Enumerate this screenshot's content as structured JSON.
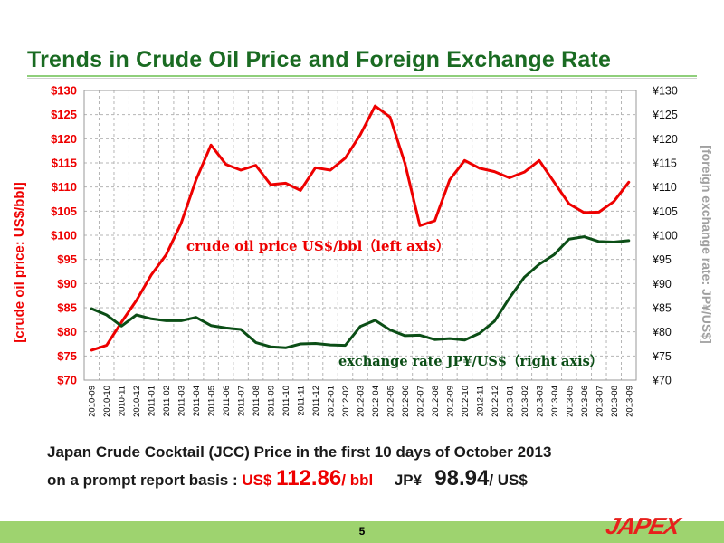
{
  "title": "Trends in Crude Oil Price and Foreign Exchange Rate",
  "colors": {
    "oil": "#ee0000",
    "fx": "#0b4e16",
    "title": "#1a6b22",
    "accent_band": "#9ed36f"
  },
  "chart_data": {
    "type": "line",
    "title": "",
    "xlabel": "",
    "ylabel": "[crude oil price: US$/bbl]",
    "ylabel_right": "[foreign exchange rate: JP¥/US$]",
    "ylim": [
      70,
      130
    ],
    "ylim_right": [
      70,
      130
    ],
    "grid": true,
    "left_ticks": [
      "$70",
      "$75",
      "$80",
      "$85",
      "$90",
      "$95",
      "$100",
      "$105",
      "$110",
      "$115",
      "$120",
      "$125",
      "$130"
    ],
    "right_ticks": [
      "¥70",
      "¥75",
      "¥80",
      "¥85",
      "¥90",
      "¥95",
      "¥100",
      "¥105",
      "¥110",
      "¥115",
      "¥120",
      "¥125",
      "¥130"
    ],
    "categories": [
      "2010-09",
      "2010-10",
      "2010-11",
      "2010-12",
      "2011-01",
      "2011-02",
      "2011-03",
      "2011-04",
      "2011-05",
      "2011-06",
      "2011-07",
      "2011-08",
      "2011-09",
      "2011-10",
      "2011-11",
      "2011-12",
      "2012-01",
      "2012-02",
      "2012-03",
      "2012-04",
      "2012-05",
      "2012-06",
      "2012-07",
      "2012-08",
      "2012-09",
      "2012-10",
      "2012-11",
      "2012-12",
      "2013-01",
      "2013-02",
      "2013-03",
      "2013-04",
      "2013-05",
      "2013-06",
      "2013-07",
      "2013-08",
      "2013-09"
    ],
    "series": [
      {
        "name": "crude oil price US$/bbl（left axis）",
        "axis": "left",
        "values": [
          76.2,
          77.2,
          82.0,
          86.5,
          91.8,
          96.0,
          102.5,
          111.5,
          118.7,
          114.7,
          113.5,
          114.5,
          110.5,
          110.8,
          109.3,
          114.0,
          113.5,
          116.0,
          120.8,
          126.8,
          124.5,
          114.9,
          102.0,
          103.0,
          111.5,
          115.5,
          113.9,
          113.2,
          111.9,
          113.1,
          115.5,
          111.0,
          106.5,
          104.7,
          104.8,
          107.0,
          111.0
        ]
      },
      {
        "name": "exchange rate JP¥/US$（right axis）",
        "axis": "right",
        "values": [
          84.8,
          83.5,
          81.2,
          83.5,
          82.7,
          82.3,
          82.3,
          83.0,
          81.3,
          80.8,
          80.5,
          77.8,
          76.9,
          76.7,
          77.5,
          77.6,
          77.3,
          77.2,
          81.1,
          82.4,
          80.4,
          79.2,
          79.3,
          78.4,
          78.6,
          78.3,
          79.7,
          82.2,
          87.0,
          91.3,
          94.0,
          96.0,
          99.2,
          99.7,
          98.7,
          98.6,
          98.9
        ]
      }
    ]
  },
  "notes": {
    "line1": "Japan Crude Cocktail (JCC) Price in the first 10 days of October 2013",
    "line2_prefix": "on a prompt report basis : ",
    "usd_unit": "US$",
    "usd_value": "112.86",
    "usd_suffix": "/ bbl",
    "jpy_unit": "JP¥",
    "jpy_value": "98.94",
    "jpy_suffix": "/ US$"
  },
  "page_number": "5",
  "logo_text": "JAPEX"
}
